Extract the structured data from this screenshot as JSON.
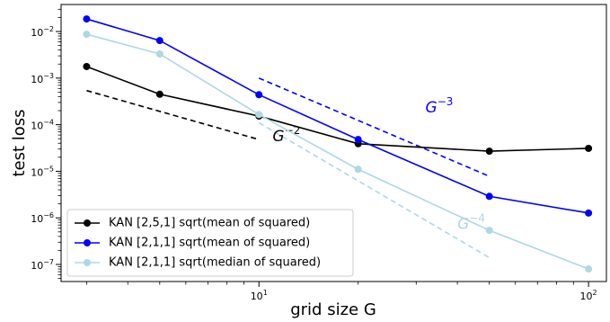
{
  "chart_data": {
    "type": "line",
    "log_x": true,
    "log_y": true,
    "xlabel": "grid size G",
    "ylabel": "test loss",
    "x": [
      3,
      5,
      10,
      20,
      50,
      100
    ],
    "series": [
      {
        "name": "KAN [2,5,1] sqrt(mean of squared)",
        "color": "#000000",
        "values": [
          0.00177,
          0.00045,
          0.000153,
          3.9e-05,
          2.7e-05,
          3.1e-05
        ]
      },
      {
        "name": "KAN [2,1,1] sqrt(mean of squared)",
        "color": "#0000ff",
        "values": [
          0.0186,
          0.0064,
          0.00044,
          4.8e-05,
          2.9e-06,
          1.27e-06
        ]
      },
      {
        "name": "KAN [2,1,1] sqrt(median of squared)",
        "color": "#add8e6",
        "values": [
          0.0087,
          0.0033,
          0.000165,
          1.1e-05,
          5.4e-07,
          8e-08
        ]
      }
    ],
    "reference_lines": [
      {
        "color": "#000000",
        "x": [
          3,
          10
        ],
        "values": [
          0.00054,
          4.8e-05
        ]
      },
      {
        "color": "#0000ff",
        "x": [
          10,
          50
        ],
        "values": [
          0.001,
          7.8e-06
        ]
      },
      {
        "color": "#add8e6",
        "x": [
          10,
          50
        ],
        "values": [
          0.00011,
          1.4e-07
        ]
      }
    ],
    "annotations": [
      {
        "text": "G",
        "exponent": "−2",
        "color": "#000000",
        "x": 11,
        "y": 5.5e-05
      },
      {
        "text": "G",
        "exponent": "−3",
        "color": "#0000ff",
        "x": 32,
        "y": 0.00023
      },
      {
        "text": "G",
        "exponent": "−4",
        "color": "#add8e6",
        "x": 40,
        "y": 7.2e-07
      }
    ],
    "xlim": [
      2.51,
      113.3
    ],
    "ylim": [
      4.3e-08,
      0.038
    ],
    "xticks": [
      {
        "value": 10,
        "label": "10",
        "exponent": "1"
      },
      {
        "value": 100,
        "label": "10",
        "exponent": "2"
      }
    ],
    "yticks": [
      {
        "value": 1e-07,
        "label": "10",
        "exponent": "−7"
      },
      {
        "value": 1e-06,
        "label": "10",
        "exponent": "−6"
      },
      {
        "value": 1e-05,
        "label": "10",
        "exponent": "−5"
      },
      {
        "value": 0.0001,
        "label": "10",
        "exponent": "−4"
      },
      {
        "value": 0.001,
        "label": "10",
        "exponent": "−3"
      },
      {
        "value": 0.01,
        "label": "10",
        "exponent": "−2"
      }
    ],
    "legend": "lower left",
    "grid": false
  }
}
